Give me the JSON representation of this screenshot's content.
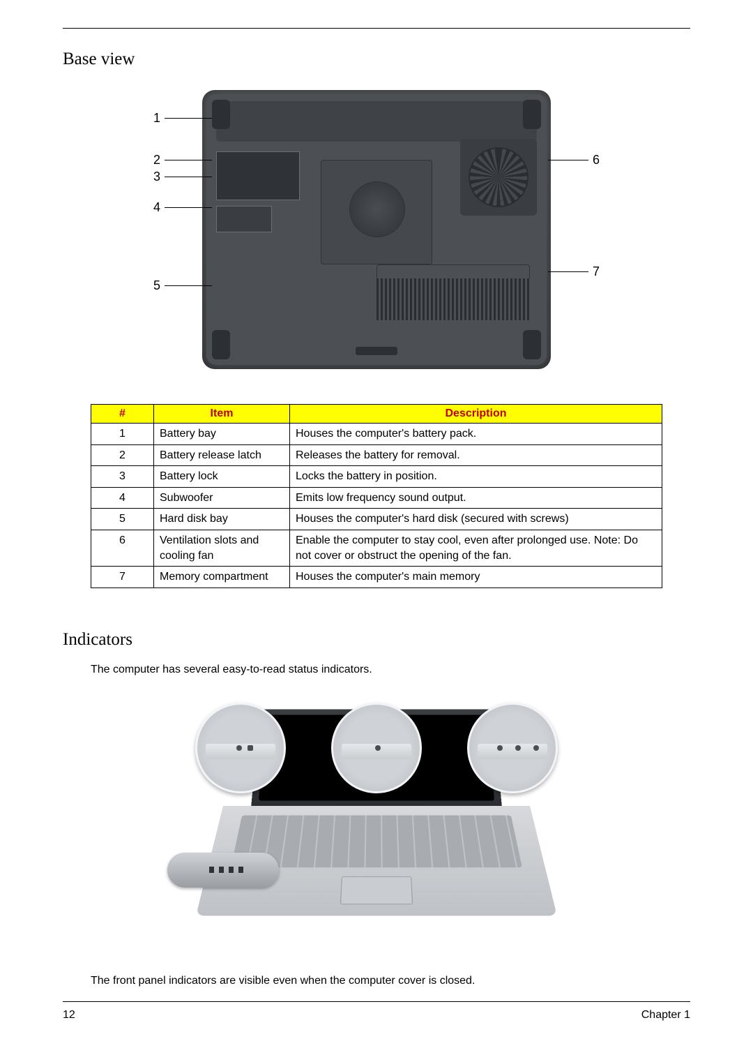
{
  "headings": {
    "base_view": "Base view",
    "indicators": "Indicators"
  },
  "base_diagram": {
    "callouts": [
      "1",
      "2",
      "3",
      "4",
      "5",
      "6",
      "7"
    ]
  },
  "table": {
    "header_color": "#ffff00",
    "header_text_color": "#c00000",
    "columns": [
      "#",
      "Item",
      "Description"
    ],
    "rows": [
      {
        "num": "1",
        "item": "Battery bay",
        "desc": "Houses the computer's battery pack."
      },
      {
        "num": "2",
        "item": "Battery release latch",
        "desc": "Releases the battery for removal."
      },
      {
        "num": "3",
        "item": "Battery lock",
        "desc": "Locks the battery in position."
      },
      {
        "num": "4",
        "item": "Subwoofer",
        "desc": "Emits low frequency sound output."
      },
      {
        "num": "5",
        "item": "Hard disk bay",
        "desc": "Houses the computer's hard disk (secured with screws)"
      },
      {
        "num": "6",
        "item": "Ventilation slots and cooling fan",
        "desc": "Enable the computer to stay cool, even after prolonged use. Note: Do not cover or obstruct the opening of the fan."
      },
      {
        "num": "7",
        "item": "Memory compartment",
        "desc": "Houses the computer's main memory"
      }
    ]
  },
  "indicators_text": {
    "intro": "The computer has several easy-to-read status indicators.",
    "footnote": "The front panel indicators are visible even when the computer cover is closed."
  },
  "footer": {
    "page": "12",
    "chapter": "Chapter 1"
  }
}
